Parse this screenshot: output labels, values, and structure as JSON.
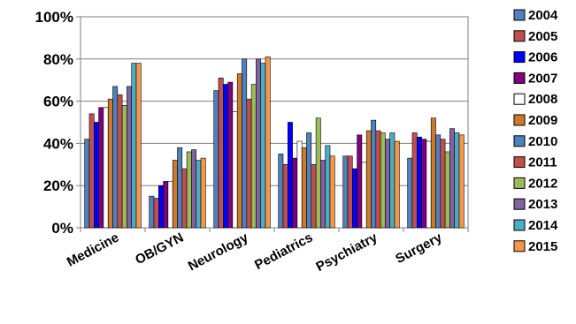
{
  "chart_data": {
    "type": "bar",
    "categories": [
      "Medicine",
      "OB/GYN",
      "Neurology",
      "Pediatrics",
      "Psychiatry",
      "Surgery"
    ],
    "y_tick_labels": [
      "0%",
      "20%",
      "40%",
      "60%",
      "80%",
      "100%"
    ],
    "ylim": [
      0,
      100
    ],
    "y_unit": "%",
    "grid": true,
    "legend_position": "right",
    "series": [
      {
        "name": "2004",
        "color": "#4f81bd",
        "values": [
          42,
          15,
          65,
          35,
          34,
          33
        ]
      },
      {
        "name": "2005",
        "color": "#c0504d",
        "values": [
          54,
          14,
          71,
          30,
          34,
          45
        ]
      },
      {
        "name": "2006",
        "color": "#0000ff",
        "values": [
          50,
          20,
          68,
          50,
          28,
          43
        ]
      },
      {
        "name": "2007",
        "color": "#7f007f",
        "values": [
          57,
          22,
          69,
          33,
          44,
          42
        ]
      },
      {
        "name": "2008",
        "color": "#ffffff",
        "values": [
          57,
          22,
          55,
          41,
          31,
          41
        ]
      },
      {
        "name": "2009",
        "color": "#cc7a2e",
        "values": [
          61,
          32,
          73,
          38,
          46,
          52
        ]
      },
      {
        "name": "2010",
        "color": "#4f81bd",
        "values": [
          67,
          38,
          80,
          45,
          51,
          44
        ]
      },
      {
        "name": "2011",
        "color": "#c0504d",
        "values": [
          63,
          28,
          61,
          30,
          46,
          42
        ]
      },
      {
        "name": "2012",
        "color": "#9bbb59",
        "values": [
          58,
          36,
          68,
          52,
          45,
          36
        ]
      },
      {
        "name": "2013",
        "color": "#8064a2",
        "values": [
          67,
          37,
          80,
          32,
          42,
          47
        ]
      },
      {
        "name": "2014",
        "color": "#4bacc6",
        "values": [
          78,
          32,
          78,
          39,
          45,
          45
        ]
      },
      {
        "name": "2015",
        "color": "#f79646",
        "values": [
          78,
          33,
          81,
          34,
          41,
          44
        ]
      }
    ]
  }
}
